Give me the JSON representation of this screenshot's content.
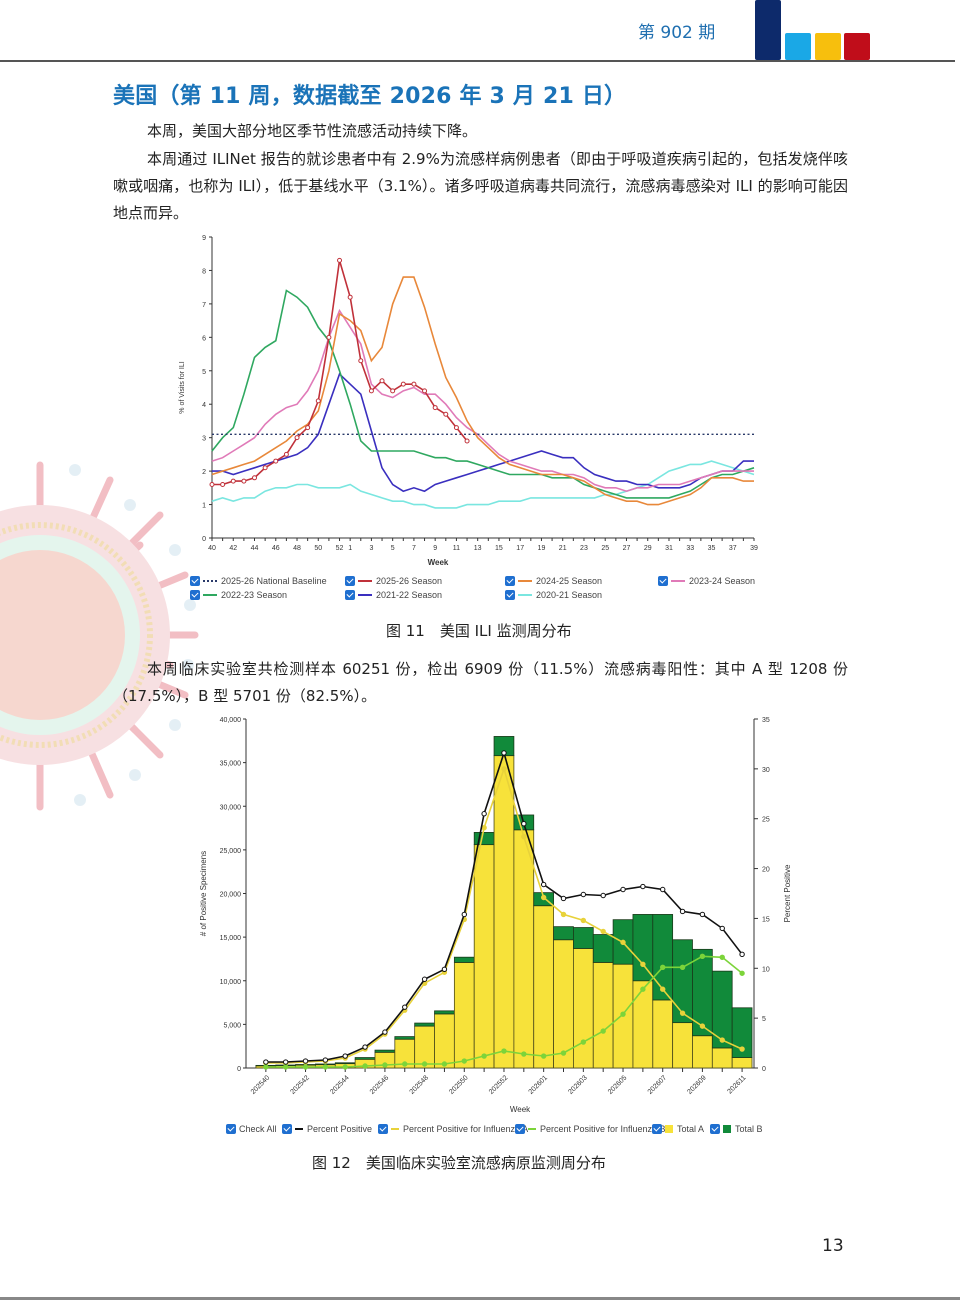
{
  "header": {
    "issue_label": "第 902 期",
    "logo_colors": [
      "#0d2a6b",
      "#1aa8e6",
      "#f7bf0d",
      "#c00d1a"
    ]
  },
  "section": {
    "title": "美国（第 11 周，数据截至 2026 年 3 月 21 日）",
    "para1": "本周，美国大部分地区季节性流感活动持续下降。",
    "para2": "本周通过 ILINet 报告的就诊患者中有 2.9%为流感样病例患者（即由于呼吸道疾病引起的，包括发烧伴咳嗽或咽痛，也称为 ILI），低于基线水平（3.1%）。诸多呼吸道病毒共同流行，流感病毒感染对 ILI 的影响可能因地点而异。",
    "para3": "本周临床实验室共检测样本 60251 份，检出 6909 份（11.5%）流感病毒阳性：其中 A 型 1208 份（17.5%），B 型 5701 份（82.5%）。"
  },
  "figure11": {
    "caption": "图 11　美国 ILI 监测周分布",
    "legend": [
      {
        "label": "2025-26 National Baseline",
        "color": "#2a3a6a",
        "style": "dotted"
      },
      {
        "label": "2025-26 Season",
        "color": "#c0313a",
        "style": "line"
      },
      {
        "label": "2024-25 Season",
        "color": "#e8883a",
        "style": "line"
      },
      {
        "label": "2023-24 Season",
        "color": "#e07ab8",
        "style": "line"
      },
      {
        "label": "2022-23 Season",
        "color": "#2fa860",
        "style": "line"
      },
      {
        "label": "2021-22 Season",
        "color": "#3a2fbf",
        "style": "line"
      },
      {
        "label": "2020-21 Season",
        "color": "#7ae6e0",
        "style": "line"
      }
    ]
  },
  "figure12": {
    "caption": "图 12　美国临床实验室流感病原监测周分布",
    "legend": [
      {
        "label": "Check All",
        "marker": "none",
        "color": ""
      },
      {
        "label": "Percent Positive",
        "marker": "line",
        "color": "#111111"
      },
      {
        "label": "Percent Positive for Influenza A",
        "marker": "line",
        "color": "#e8d23a"
      },
      {
        "label": "Percent Positive for Influenza B",
        "marker": "line",
        "color": "#7cd43a"
      },
      {
        "label": "Total A",
        "marker": "square",
        "color": "#f7e23a"
      },
      {
        "label": "Total B",
        "marker": "square",
        "color": "#118a3a"
      }
    ]
  },
  "page_number": "13",
  "chart_data": [
    {
      "type": "line",
      "title": "",
      "xlabel": "Week",
      "ylabel": "% of Visits for ILI",
      "ylim": [
        0,
        9
      ],
      "yticks": [
        0,
        1,
        2,
        3,
        4,
        5,
        6,
        7,
        8,
        9
      ],
      "grid": false,
      "legend_position": "bottom",
      "x": [
        40,
        41,
        42,
        43,
        44,
        45,
        46,
        47,
        48,
        49,
        50,
        51,
        52,
        1,
        2,
        3,
        4,
        5,
        6,
        7,
        8,
        9,
        10,
        11,
        12,
        13,
        14,
        15,
        16,
        17,
        18,
        19,
        20,
        21,
        22,
        23,
        24,
        25,
        26,
        27,
        28,
        29,
        30,
        31,
        32,
        33,
        34,
        35,
        36,
        37,
        38,
        39
      ],
      "xtick_labels": [
        "40",
        "42",
        "44",
        "46",
        "48",
        "50",
        "52",
        "1",
        "3",
        "5",
        "7",
        "9",
        "11",
        "13",
        "15",
        "17",
        "19",
        "21",
        "23",
        "25",
        "27",
        "29",
        "31",
        "33",
        "35",
        "37",
        "39"
      ],
      "series": [
        {
          "name": "2025-26 National Baseline",
          "values": [
            3.1,
            3.1,
            3.1,
            3.1,
            3.1,
            3.1,
            3.1,
            3.1,
            3.1,
            3.1,
            3.1,
            3.1,
            3.1,
            3.1,
            3.1,
            3.1,
            3.1,
            3.1,
            3.1,
            3.1,
            3.1,
            3.1,
            3.1,
            3.1,
            3.1,
            3.1,
            3.1,
            3.1,
            3.1,
            3.1,
            3.1,
            3.1,
            3.1,
            3.1,
            3.1,
            3.1,
            3.1,
            3.1,
            3.1,
            3.1,
            3.1,
            3.1,
            3.1,
            3.1,
            3.1,
            3.1,
            3.1,
            3.1,
            3.1,
            3.1,
            3.1,
            3.1
          ]
        },
        {
          "name": "2025-26 Season",
          "values": [
            1.6,
            1.6,
            1.7,
            1.7,
            1.8,
            2.1,
            2.3,
            2.5,
            3.0,
            3.3,
            4.1,
            6.0,
            8.3,
            7.2,
            5.3,
            4.4,
            4.7,
            4.4,
            4.6,
            4.6,
            4.4,
            3.9,
            3.7,
            3.3,
            2.9
          ]
        },
        {
          "name": "2024-25 Season",
          "values": [
            1.9,
            2.0,
            2.1,
            2.2,
            2.3,
            2.5,
            2.7,
            2.9,
            3.2,
            3.4,
            3.8,
            5.0,
            6.7,
            6.5,
            6.2,
            5.3,
            5.7,
            7.0,
            7.8,
            7.8,
            6.9,
            5.8,
            4.8,
            4.2,
            3.5,
            3.0,
            2.7,
            2.4,
            2.2,
            2.1,
            2.0,
            1.9,
            1.9,
            1.9,
            1.8,
            1.7,
            1.5,
            1.3,
            1.2,
            1.1,
            1.1,
            1.0,
            1.0,
            1.1,
            1.2,
            1.3,
            1.5,
            1.8,
            1.8,
            1.8,
            1.7,
            1.7
          ]
        },
        {
          "name": "2023-24 Season",
          "values": [
            2.3,
            2.4,
            2.6,
            2.8,
            3.0,
            3.4,
            3.7,
            3.9,
            4.0,
            4.4,
            5.0,
            6.0,
            6.8,
            6.3,
            5.8,
            4.6,
            4.3,
            4.2,
            4.4,
            4.5,
            4.3,
            4.3,
            4.0,
            3.6,
            3.3,
            3.1,
            2.8,
            2.5,
            2.3,
            2.2,
            2.1,
            2.0,
            2.0,
            1.9,
            1.9,
            1.8,
            1.6,
            1.5,
            1.5,
            1.4,
            1.5,
            1.5,
            1.6,
            1.6,
            1.6,
            1.7,
            1.8,
            1.9,
            2.0,
            2.0,
            2.0,
            2.0
          ]
        },
        {
          "name": "2022-23 Season",
          "values": [
            2.6,
            3.0,
            3.3,
            4.3,
            5.4,
            5.7,
            5.9,
            7.4,
            7.2,
            6.9,
            6.3,
            5.9,
            5.0,
            4.0,
            2.9,
            2.6,
            2.6,
            2.6,
            2.6,
            2.6,
            2.5,
            2.4,
            2.4,
            2.3,
            2.3,
            2.2,
            2.1,
            2.0,
            1.9,
            1.9,
            1.9,
            1.9,
            1.8,
            1.8,
            1.8,
            1.6,
            1.5,
            1.4,
            1.3,
            1.2,
            1.2,
            1.2,
            1.2,
            1.2,
            1.3,
            1.4,
            1.6,
            1.8,
            1.9,
            1.9,
            2.0,
            2.1
          ]
        },
        {
          "name": "2021-22 Season",
          "values": [
            2.0,
            2.0,
            1.9,
            2.0,
            2.1,
            2.2,
            2.3,
            2.4,
            2.5,
            2.7,
            3.1,
            4.0,
            4.9,
            4.6,
            4.3,
            3.2,
            2.1,
            1.6,
            1.4,
            1.5,
            1.4,
            1.6,
            1.7,
            1.8,
            1.9,
            2.0,
            2.1,
            2.2,
            2.3,
            2.4,
            2.5,
            2.6,
            2.5,
            2.4,
            2.4,
            2.1,
            1.9,
            1.8,
            1.7,
            1.7,
            1.6,
            1.6,
            1.5,
            1.5,
            1.5,
            1.6,
            1.8,
            1.9,
            2.0,
            2.0,
            2.3,
            2.3
          ]
        },
        {
          "name": "2020-21 Season",
          "values": [
            1.1,
            1.2,
            1.1,
            1.2,
            1.2,
            1.4,
            1.5,
            1.5,
            1.6,
            1.6,
            1.5,
            1.5,
            1.5,
            1.6,
            1.4,
            1.3,
            1.2,
            1.1,
            1.1,
            1.0,
            1.0,
            0.9,
            0.9,
            0.9,
            1.0,
            1.0,
            1.0,
            1.1,
            1.1,
            1.1,
            1.2,
            1.2,
            1.2,
            1.2,
            1.2,
            1.2,
            1.2,
            1.3,
            1.3,
            1.4,
            1.5,
            1.6,
            1.8,
            2.0,
            2.1,
            2.2,
            2.2,
            2.3,
            2.2,
            2.1,
            2.0,
            1.9
          ]
        }
      ]
    },
    {
      "type": "bar",
      "stacked": true,
      "xlabel": "Week",
      "ylabel": "# of Positive Specimens",
      "y2label": "Percent Positive",
      "ylim": [
        0,
        40000
      ],
      "y2lim": [
        0,
        35
      ],
      "yticks": [
        "0",
        "5,000",
        "10,000",
        "15,000",
        "20,000",
        "25,000",
        "30,000",
        "35,000",
        "40,000"
      ],
      "y2ticks": [
        0,
        5,
        10,
        15,
        20,
        25,
        30,
        35
      ],
      "legend_position": "bottom",
      "categories": [
        "202540",
        "202541",
        "202542",
        "202543",
        "202544",
        "202545",
        "202546",
        "202547",
        "202548",
        "202549",
        "202550",
        "202551",
        "202552",
        "202553",
        "202601",
        "202602",
        "202603",
        "202604",
        "202605",
        "202606",
        "202607",
        "202608",
        "202609",
        "202610",
        "202611"
      ],
      "xtick_labels": [
        "202540",
        "202542",
        "202544",
        "202546",
        "202548",
        "202550",
        "202552",
        "202601",
        "202603",
        "202605",
        "202607",
        "202609",
        "202611"
      ],
      "series": [
        {
          "name": "Total A",
          "axis": "left",
          "values": [
            250,
            280,
            330,
            380,
            500,
            1000,
            1800,
            3300,
            4800,
            6200,
            12100,
            25600,
            35800,
            27300,
            18600,
            14700,
            13700,
            12100,
            11900,
            10000,
            7800,
            5200,
            3700,
            2300,
            1200
          ]
        },
        {
          "name": "Total B",
          "axis": "left",
          "values": [
            50,
            60,
            70,
            80,
            100,
            200,
            250,
            300,
            350,
            350,
            600,
            1400,
            2200,
            1700,
            1500,
            1500,
            2400,
            3200,
            5100,
            7600,
            9800,
            9500,
            9900,
            8800,
            5700
          ]
        },
        {
          "name": "Percent Positive",
          "axis": "right",
          "type": "line",
          "values": [
            0.6,
            0.6,
            0.7,
            0.8,
            1.2,
            2.1,
            3.6,
            6.1,
            8.9,
            9.9,
            15.4,
            25.5,
            31.6,
            24.5,
            18.4,
            17.0,
            17.4,
            17.3,
            17.9,
            18.2,
            17.9,
            15.7,
            15.4,
            14.0,
            11.4
          ]
        },
        {
          "name": "Percent Positive for Influenza A",
          "axis": "right",
          "type": "line",
          "values": [
            0.5,
            0.5,
            0.6,
            0.7,
            1.0,
            1.9,
            3.4,
            5.8,
            8.5,
            9.6,
            14.9,
            24.1,
            30.0,
            23.2,
            17.1,
            15.4,
            14.8,
            13.7,
            12.6,
            10.4,
            7.9,
            5.5,
            4.2,
            2.8,
            1.9
          ]
        },
        {
          "name": "Percent Positive for Influenza B",
          "axis": "right",
          "type": "line",
          "values": [
            0.1,
            0.1,
            0.1,
            0.1,
            0.1,
            0.2,
            0.3,
            0.4,
            0.4,
            0.4,
            0.7,
            1.2,
            1.7,
            1.4,
            1.2,
            1.5,
            2.6,
            3.7,
            5.4,
            7.9,
            10.1,
            10.1,
            11.2,
            11.1,
            9.5
          ]
        }
      ]
    }
  ]
}
